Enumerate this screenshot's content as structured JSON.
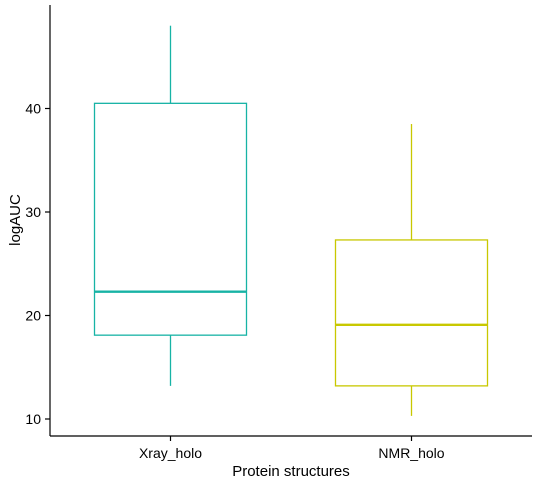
{
  "chart_data": {
    "type": "box",
    "xlabel": "Protein structures",
    "ylabel": "logAUC",
    "ylim": [
      9,
      50
    ],
    "yticks": [
      10,
      20,
      30,
      40
    ],
    "grid": false,
    "legend": "none",
    "categories": [
      "Xray_holo",
      "NMR_holo"
    ],
    "boxes": [
      {
        "category": "Xray_holo",
        "min": 13.2,
        "q1": 18.1,
        "median": 22.3,
        "q3": 40.5,
        "max": 48.0,
        "color": "#17B3A5"
      },
      {
        "category": "NMR_holo",
        "min": 10.3,
        "q1": 13.2,
        "median": 19.1,
        "q3": 27.3,
        "max": 38.5,
        "color": "#C8C800"
      }
    ]
  }
}
